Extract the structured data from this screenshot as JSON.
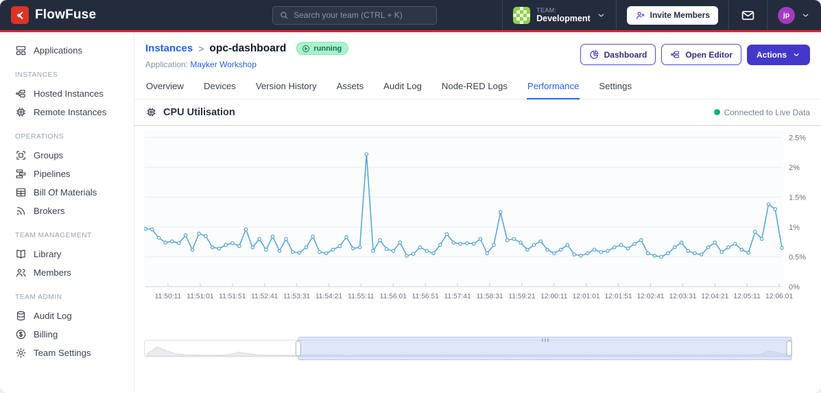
{
  "navbar": {
    "brand": "FlowFuse",
    "search_placeholder": "Search your team (CTRL + K)",
    "team_label": "TEAM:",
    "team_name": "Development",
    "invite_button": "Invite Members",
    "avatar_initials": "jp"
  },
  "sidebar": {
    "sections": [
      {
        "header": null,
        "items": [
          {
            "label": "Applications",
            "icon": "applications-icon"
          }
        ]
      },
      {
        "header": "INSTANCES",
        "items": [
          {
            "label": "Hosted Instances",
            "icon": "hosted-instances-icon"
          },
          {
            "label": "Remote Instances",
            "icon": "remote-instances-icon"
          }
        ]
      },
      {
        "header": "OPERATIONS",
        "items": [
          {
            "label": "Groups",
            "icon": "groups-icon"
          },
          {
            "label": "Pipelines",
            "icon": "pipelines-icon"
          },
          {
            "label": "Bill Of Materials",
            "icon": "bill-of-materials-icon"
          },
          {
            "label": "Brokers",
            "icon": "brokers-icon"
          }
        ]
      },
      {
        "header": "TEAM MANAGEMENT",
        "items": [
          {
            "label": "Library",
            "icon": "library-icon"
          },
          {
            "label": "Members",
            "icon": "members-icon"
          }
        ]
      },
      {
        "header": "TEAM ADMIN",
        "items": [
          {
            "label": "Audit Log",
            "icon": "audit-log-icon"
          },
          {
            "label": "Billing",
            "icon": "billing-icon"
          },
          {
            "label": "Team Settings",
            "icon": "team-settings-icon"
          }
        ]
      }
    ]
  },
  "header": {
    "breadcrumb_parent": "Instances",
    "breadcrumb_separator": ">",
    "instance_name": "opc-dashboard",
    "status_badge": "running",
    "application_label": "Application:",
    "application_name": "Mayker Workshop",
    "buttons": {
      "dashboard": "Dashboard",
      "open_editor": "Open Editor",
      "actions": "Actions"
    }
  },
  "tabs": {
    "active": "Performance",
    "items": [
      "Overview",
      "Devices",
      "Version History",
      "Assets",
      "Audit Log",
      "Node-RED Logs",
      "Performance",
      "Settings"
    ]
  },
  "panel": {
    "title": "CPU Utilisation",
    "live_status": "Connected to Live Data"
  },
  "colors": {
    "brand_red": "#dd3226",
    "navbar_bg": "#222c3d",
    "accent_indigo": "#4338ca",
    "link_blue": "#2563eb",
    "line_blue": "#51a3d7",
    "live_green": "#12b76a",
    "badge_bg": "#a9f2cc",
    "badge_text": "#12714c"
  },
  "chart_data": {
    "type": "line",
    "title": "CPU Utilisation",
    "unit": "%",
    "ylim": [
      0,
      2.5
    ],
    "grid": true,
    "y_ticks": [
      "0%",
      "0.5%",
      "1%",
      "1.5%",
      "2%",
      "2.5%"
    ],
    "x_ticks": [
      "11:50:11",
      "11:51:01",
      "11:51:51",
      "11:52:41",
      "11:53:31",
      "11:54:21",
      "11:55:11",
      "11:56:01",
      "11:56:51",
      "11:57:41",
      "11:58:31",
      "11:59:21",
      "12:00:11",
      "12:01:01",
      "12:01:51",
      "12:02:41",
      "12:03:31",
      "12:04:21",
      "12:05:11",
      "12:06:01"
    ],
    "sample_interval_seconds": 10,
    "line_color": "#51a3d7",
    "values": [
      0.97,
      0.96,
      0.82,
      0.74,
      0.76,
      0.73,
      0.86,
      0.62,
      0.89,
      0.85,
      0.66,
      0.64,
      0.7,
      0.73,
      0.68,
      0.96,
      0.66,
      0.8,
      0.62,
      0.84,
      0.6,
      0.8,
      0.58,
      0.57,
      0.66,
      0.84,
      0.58,
      0.56,
      0.62,
      0.68,
      0.83,
      0.64,
      0.66,
      2.22,
      0.6,
      0.78,
      0.63,
      0.6,
      0.74,
      0.52,
      0.55,
      0.66,
      0.6,
      0.56,
      0.7,
      0.88,
      0.74,
      0.72,
      0.73,
      0.72,
      0.8,
      0.56,
      0.7,
      1.25,
      0.78,
      0.8,
      0.74,
      0.62,
      0.7,
      0.76,
      0.62,
      0.56,
      0.62,
      0.7,
      0.54,
      0.52,
      0.56,
      0.62,
      0.58,
      0.6,
      0.66,
      0.7,
      0.64,
      0.72,
      0.78,
      0.56,
      0.52,
      0.5,
      0.56,
      0.66,
      0.74,
      0.6,
      0.56,
      0.54,
      0.66,
      0.74,
      0.58,
      0.66,
      0.72,
      0.62,
      0.57,
      0.92,
      0.8,
      1.38,
      1.3,
      0.65
    ],
    "brush": {
      "selection_start_frac": 0.238,
      "selection_end_frac": 1.0,
      "values": [
        0.1,
        0.55,
        0.3,
        0.12,
        0.08,
        0.06,
        0.05,
        0.05,
        0.07,
        0.24,
        0.14,
        0.07,
        0.05,
        0.05,
        0.04,
        0.05,
        0.06,
        0.05,
        0.08,
        0.05,
        0.04,
        0.05,
        0.06,
        0.05,
        0.06,
        0.07,
        0.05,
        0.06,
        0.05,
        0.07,
        0.06,
        0.05,
        0.06,
        0.07,
        0.05,
        0.06,
        0.08,
        0.05,
        0.06,
        0.07,
        0.05,
        0.06,
        0.05,
        0.07,
        0.06,
        0.08,
        0.05,
        0.06,
        0.07,
        0.05,
        0.06,
        0.05,
        0.07,
        0.06,
        0.05,
        0.06,
        0.07,
        0.06,
        0.08,
        0.06,
        0.1,
        0.3,
        0.2,
        0.06
      ]
    }
  }
}
